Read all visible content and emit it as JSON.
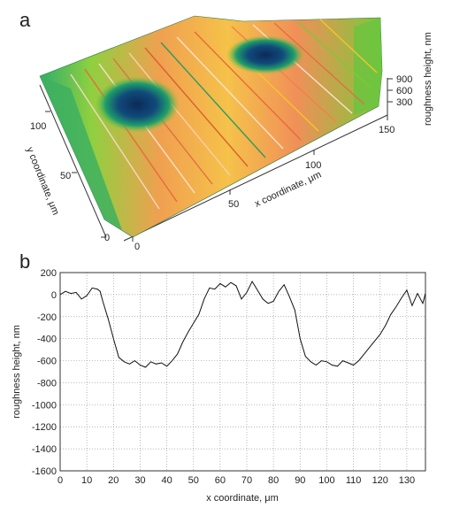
{
  "figure": {
    "panel_a_letter": "a",
    "panel_b_letter": "b"
  },
  "chart_data": [
    {
      "panel": "a",
      "type": "surface3d",
      "xlabel": "x coordinate, μm",
      "ylabel": "y coordinate, μm",
      "zlabel": "roughness height, nm",
      "x_ticks": [
        0,
        50,
        100,
        150
      ],
      "y_ticks": [
        0,
        50,
        100
      ],
      "z_ticks": [
        300,
        600,
        900
      ],
      "colors": {
        "low": "#0b3a6e",
        "mid_low": "#1f9e6a",
        "mid": "#7dc83a",
        "mid_high": "#f4c430",
        "high": "#f0824c",
        "peak": "#fbe2cc"
      }
    },
    {
      "panel": "b",
      "type": "line",
      "xlabel": "x coordinate, μm",
      "ylabel": "roughness height, nm",
      "xlim": [
        0,
        137
      ],
      "ylim": [
        -1600,
        200
      ],
      "x_ticks": [
        0,
        10,
        20,
        30,
        40,
        50,
        60,
        70,
        80,
        90,
        100,
        110,
        120,
        130
      ],
      "y_ticks": [
        200,
        0,
        -200,
        -400,
        -600,
        -800,
        -1000,
        -1200,
        -1400,
        -1600
      ],
      "grid": true,
      "series": [
        {
          "color": "#111111",
          "x": [
            0,
            2,
            4,
            6,
            8,
            10,
            12,
            14,
            15,
            16,
            18,
            20,
            22,
            24,
            26,
            28,
            30,
            32,
            34,
            36,
            38,
            40,
            42,
            44,
            46,
            48,
            50,
            52,
            54,
            56,
            58,
            60,
            62,
            64,
            66,
            68,
            70,
            72,
            74,
            76,
            78,
            80,
            82,
            84,
            86,
            88,
            90,
            92,
            94,
            96,
            98,
            100,
            102,
            104,
            106,
            108,
            110,
            112,
            114,
            116,
            118,
            120,
            122,
            124,
            126,
            128,
            130,
            132,
            134,
            136,
            137
          ],
          "y": [
            0,
            30,
            10,
            20,
            -40,
            -10,
            60,
            50,
            30,
            -60,
            -220,
            -400,
            -570,
            -610,
            -630,
            -600,
            -640,
            -660,
            -610,
            -630,
            -620,
            -650,
            -600,
            -540,
            -430,
            -340,
            -260,
            -180,
            -40,
            60,
            50,
            100,
            70,
            110,
            80,
            -40,
            20,
            120,
            40,
            -40,
            -80,
            -60,
            30,
            90,
            -20,
            -140,
            -400,
            -560,
            -610,
            -640,
            -600,
            -610,
            -640,
            -650,
            -600,
            -620,
            -640,
            -600,
            -540,
            -480,
            -420,
            -360,
            -280,
            -180,
            -110,
            -30,
            40,
            -100,
            10,
            -80,
            10
          ]
        }
      ]
    }
  ]
}
